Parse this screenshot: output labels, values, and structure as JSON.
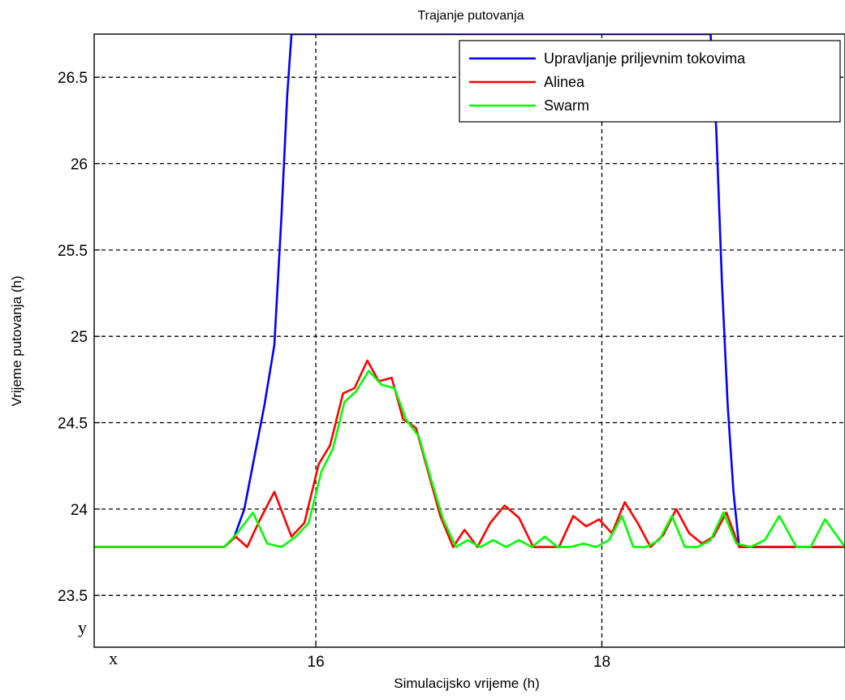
{
  "chart_data": {
    "type": "line",
    "title": "Trajanje putovanja",
    "xlabel": "Simulacijsko vrijeme (h)",
    "ylabel": "Vrijeme putovanja (h)",
    "xlim": [
      14.45,
      19.7
    ],
    "ylim": [
      23.2,
      26.75
    ],
    "xticks": [
      16,
      18
    ],
    "xtick_labels": [
      "16",
      "18"
    ],
    "yticks": [
      23.5,
      24,
      24.5,
      25,
      25.5,
      26,
      26.5
    ],
    "ytick_labels": [
      "23.5",
      "24",
      "24.5",
      "25",
      "25.5",
      "26",
      "26.5"
    ],
    "grid": true,
    "legend_position": "top-right",
    "corner_labels": {
      "x": "x",
      "y": "y"
    },
    "series": [
      {
        "name": "Upravljanje priljevnim tokovima",
        "color": "#0000ff",
        "x": [
          14.45,
          15.36,
          15.43,
          15.5,
          15.57,
          15.64,
          15.71,
          15.76,
          15.8,
          15.83,
          18.76,
          18.8,
          18.84,
          18.88,
          18.92,
          18.96,
          19.7
        ],
        "y": [
          23.78,
          23.78,
          23.84,
          24.0,
          24.3,
          24.6,
          24.95,
          25.7,
          26.4,
          26.75,
          26.75,
          26.2,
          25.3,
          24.6,
          24.1,
          23.78,
          23.78
        ]
      },
      {
        "name": "Alinea",
        "color": "#ff0000",
        "x": [
          14.45,
          15.36,
          15.44,
          15.52,
          15.61,
          15.71,
          15.83,
          15.92,
          16.02,
          16.1,
          16.19,
          16.27,
          16.36,
          16.44,
          16.53,
          16.61,
          16.7,
          16.79,
          16.87,
          16.96,
          17.04,
          17.13,
          17.22,
          17.32,
          17.42,
          17.52,
          17.62,
          17.7,
          17.8,
          17.89,
          17.98,
          18.07,
          18.16,
          18.25,
          18.34,
          18.43,
          18.52,
          18.61,
          18.7,
          18.78,
          18.87,
          18.96,
          19.7
        ],
        "y": [
          23.78,
          23.78,
          23.84,
          23.78,
          23.94,
          24.1,
          23.84,
          23.92,
          24.26,
          24.37,
          24.67,
          24.7,
          24.86,
          24.74,
          24.76,
          24.52,
          24.47,
          24.2,
          23.96,
          23.78,
          23.88,
          23.78,
          23.92,
          24.02,
          23.95,
          23.78,
          23.78,
          23.78,
          23.96,
          23.9,
          23.94,
          23.86,
          24.04,
          23.92,
          23.78,
          23.85,
          24.0,
          23.86,
          23.8,
          23.84,
          23.98,
          23.78,
          23.78
        ]
      },
      {
        "name": "Swarm",
        "color": "#00ff00",
        "x": [
          14.45,
          15.36,
          15.45,
          15.56,
          15.66,
          15.76,
          15.86,
          15.95,
          16.04,
          16.12,
          16.2,
          16.28,
          16.37,
          16.46,
          16.55,
          16.63,
          16.72,
          16.81,
          16.89,
          16.98,
          17.06,
          17.15,
          17.24,
          17.33,
          17.42,
          17.51,
          17.6,
          17.69,
          17.78,
          17.87,
          17.96,
          18.05,
          18.14,
          18.22,
          18.31,
          18.4,
          18.49,
          18.58,
          18.67,
          18.76,
          18.85,
          18.94,
          19.04,
          19.14,
          19.24,
          19.36,
          19.46,
          19.56,
          19.7
        ],
        "y": [
          23.78,
          23.78,
          23.86,
          23.98,
          23.8,
          23.78,
          23.84,
          23.92,
          24.22,
          24.35,
          24.62,
          24.68,
          24.8,
          24.72,
          24.7,
          24.52,
          24.42,
          24.16,
          23.94,
          23.78,
          23.82,
          23.78,
          23.82,
          23.78,
          23.82,
          23.78,
          23.84,
          23.78,
          23.78,
          23.8,
          23.78,
          23.82,
          23.96,
          23.78,
          23.78,
          23.82,
          23.96,
          23.78,
          23.78,
          23.82,
          23.98,
          23.8,
          23.78,
          23.82,
          23.96,
          23.78,
          23.78,
          23.94,
          23.78
        ]
      }
    ]
  }
}
